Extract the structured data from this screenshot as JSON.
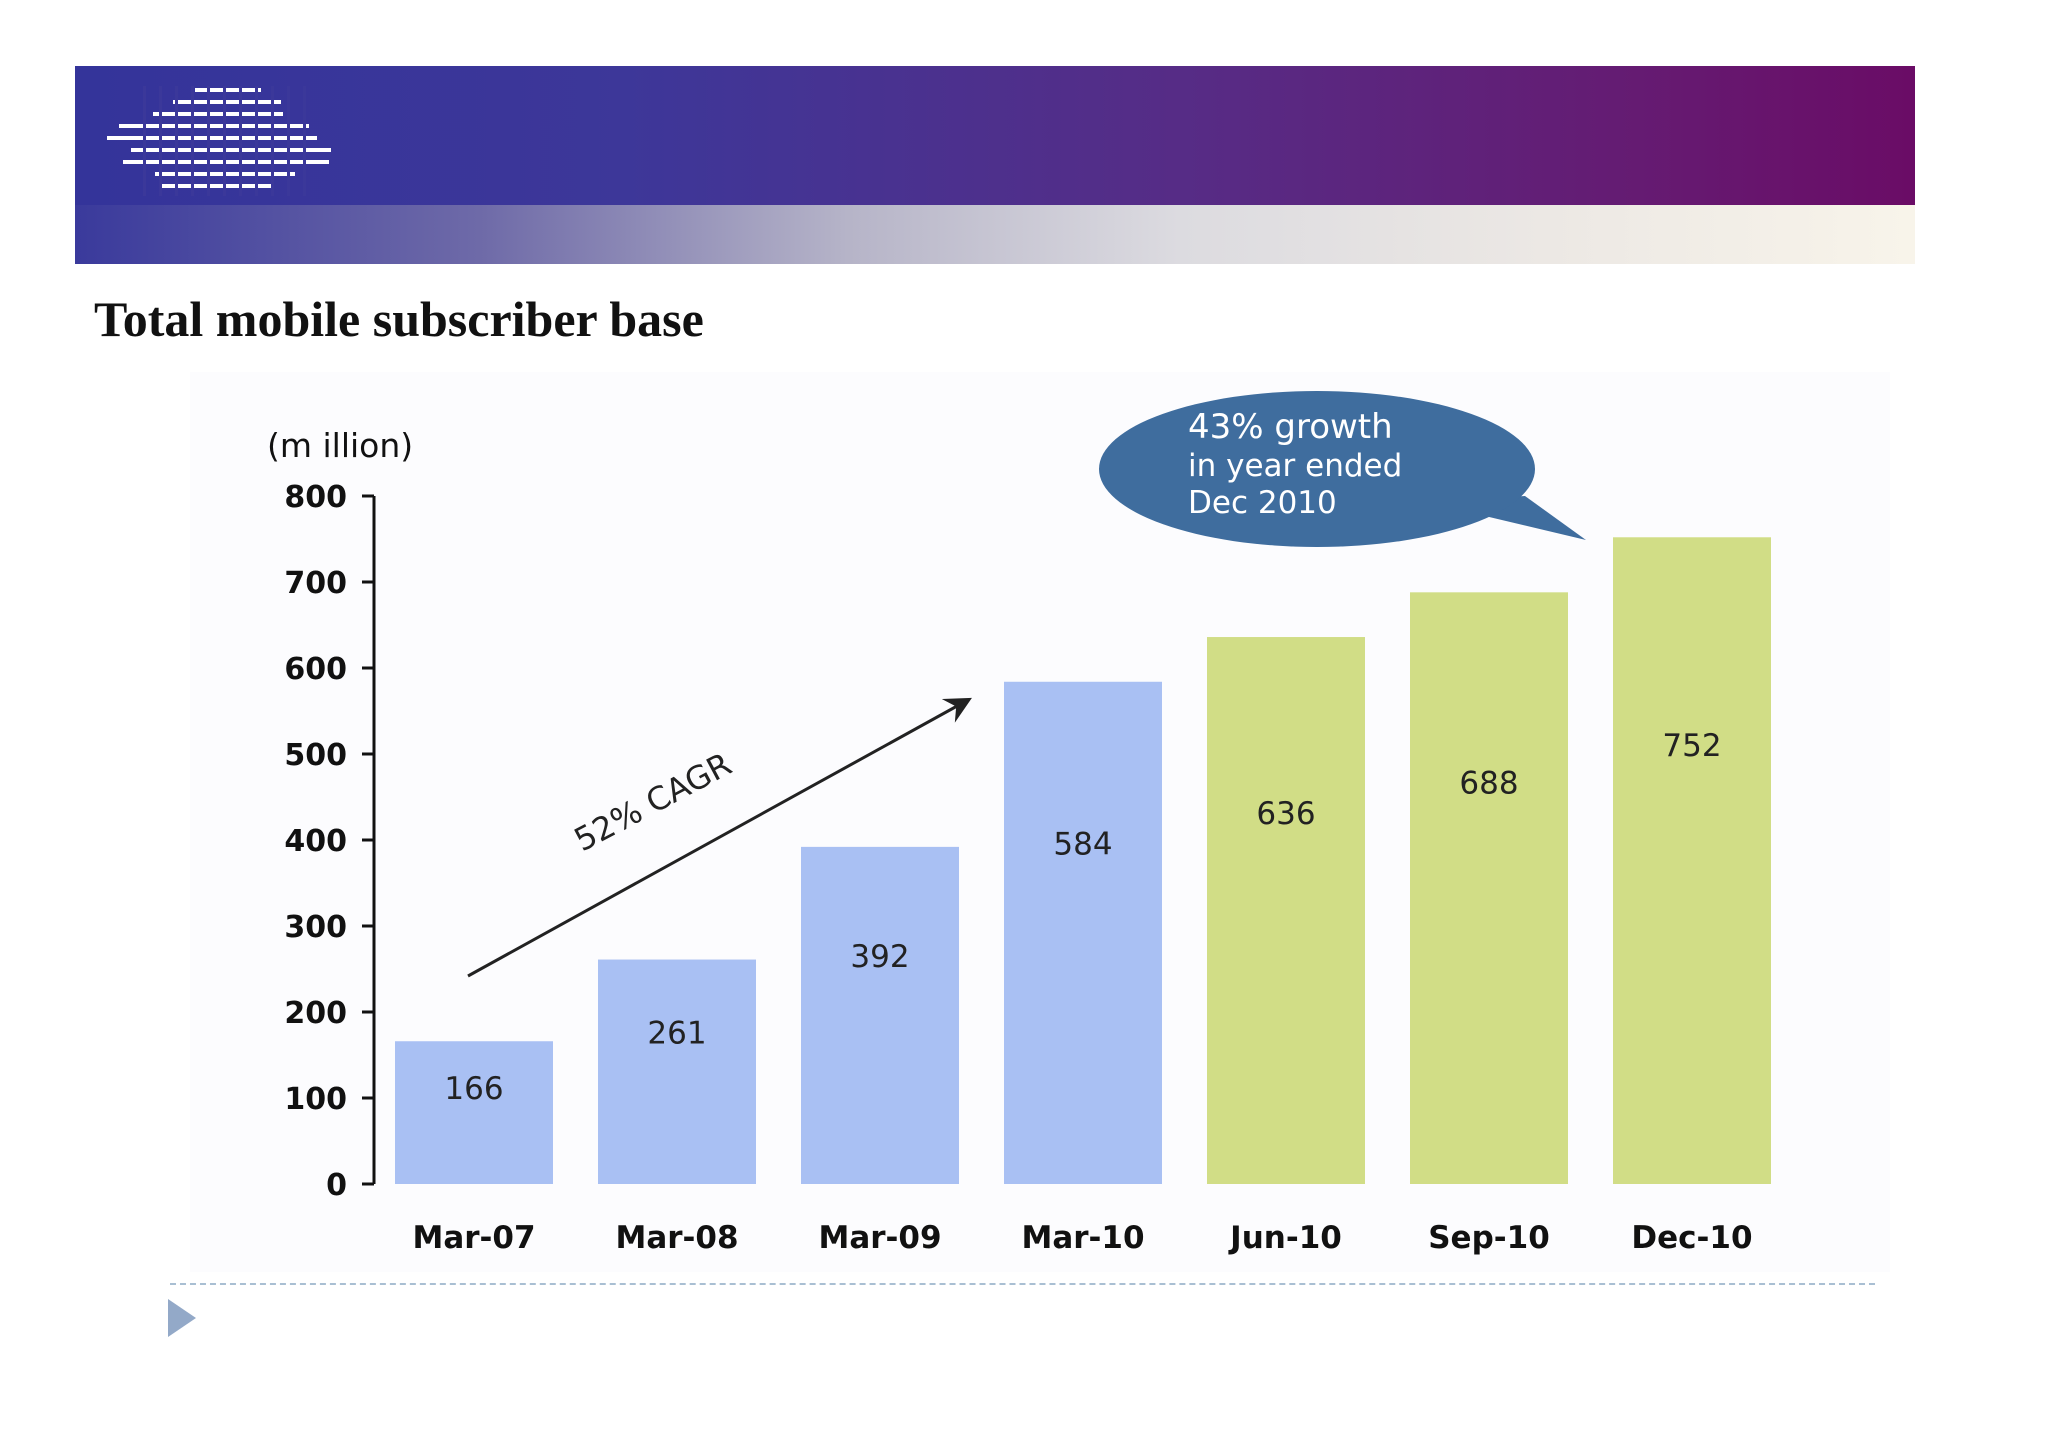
{
  "slide": {
    "title": "Total mobile subscriber base",
    "colors": {
      "header_left": "#34349a",
      "header_right": "#6a0c66",
      "bar_historic": "#a9c0f3",
      "bar_recent": "#d1dd86",
      "callout": "#3f6d9e"
    }
  },
  "chart_data": {
    "type": "bar",
    "categories": [
      "Mar-07",
      "Mar-08",
      "Mar-09",
      "Mar-10",
      "Jun-10",
      "Sep-10",
      "Dec-10"
    ],
    "values": [
      166,
      261,
      392,
      584,
      636,
      688,
      752
    ],
    "bar_colors": [
      "#a9c0f3",
      "#a9c0f3",
      "#a9c0f3",
      "#a9c0f3",
      "#d1dd86",
      "#d1dd86",
      "#d1dd86"
    ],
    "unit_label": "(m illion)",
    "ylim": [
      0,
      800
    ],
    "yticks": [
      0,
      100,
      200,
      300,
      400,
      500,
      600,
      700,
      800
    ],
    "grid": false,
    "annotations": {
      "cagr": "52% CAGR",
      "callout_lines": [
        "43% growth",
        "in year ended",
        "Dec 2010"
      ]
    }
  }
}
